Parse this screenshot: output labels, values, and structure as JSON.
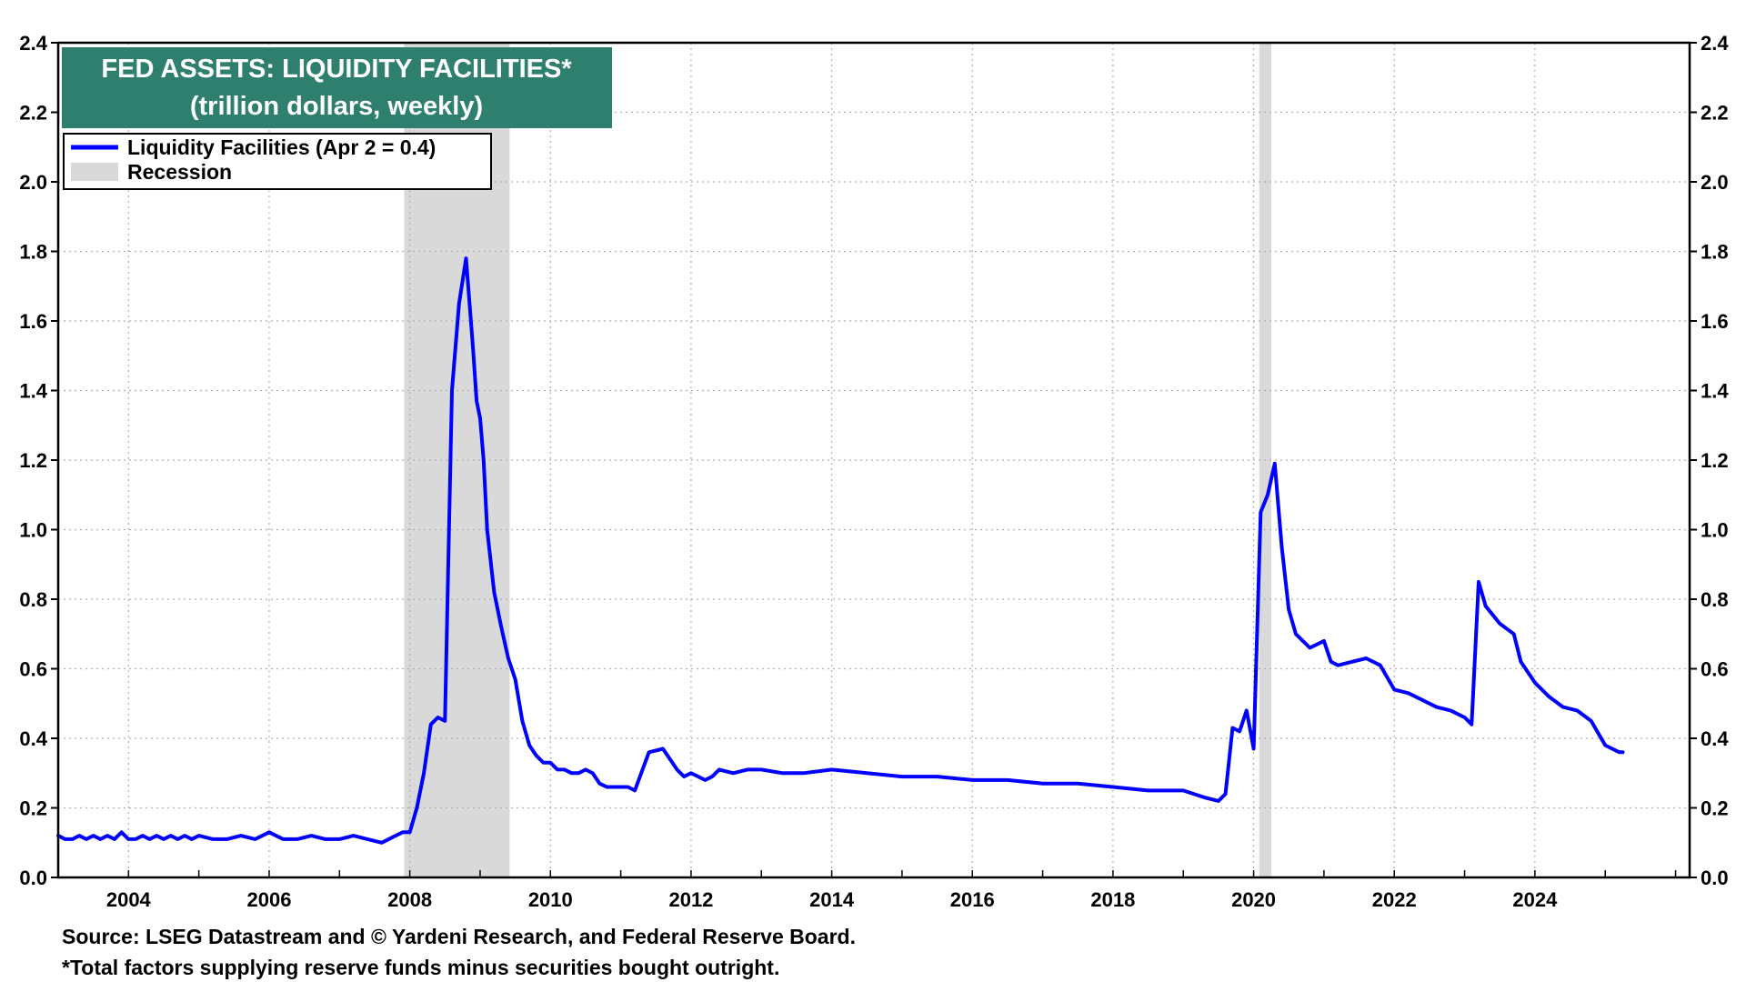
{
  "chart_data": {
    "type": "line",
    "title": "FED ASSETS: LIQUIDITY FACILITIES*",
    "subtitle": "(trillion dollars, weekly)",
    "xlabel": "",
    "ylabel": "",
    "xlim": [
      2003.0,
      2026.2
    ],
    "ylim": [
      0.0,
      2.4
    ],
    "x_ticks": [
      "2004",
      "2006",
      "2008",
      "2010",
      "2012",
      "2014",
      "2016",
      "2018",
      "2020",
      "2022",
      "2024"
    ],
    "y_ticks": [
      "0.0",
      "0.2",
      "0.4",
      "0.6",
      "0.8",
      "1.0",
      "1.2",
      "1.4",
      "1.6",
      "1.8",
      "2.0",
      "2.2",
      "2.4"
    ],
    "grid": true,
    "legend_position": "top-left",
    "series": [
      {
        "name": "Liquidity Facilities  (Apr 2 = 0.4)",
        "color": "#0000ff",
        "x": [
          2003.0,
          2003.1,
          2003.2,
          2003.3,
          2003.4,
          2003.5,
          2003.6,
          2003.7,
          2003.8,
          2003.9,
          2004.0,
          2004.1,
          2004.2,
          2004.3,
          2004.4,
          2004.5,
          2004.6,
          2004.7,
          2004.8,
          2004.9,
          2005.0,
          2005.2,
          2005.4,
          2005.6,
          2005.8,
          2006.0,
          2006.2,
          2006.4,
          2006.6,
          2006.8,
          2007.0,
          2007.2,
          2007.4,
          2007.6,
          2007.8,
          2007.9,
          2008.0,
          2008.1,
          2008.2,
          2008.3,
          2008.4,
          2008.5,
          2008.6,
          2008.7,
          2008.8,
          2008.9,
          2008.95,
          2009.0,
          2009.05,
          2009.1,
          2009.2,
          2009.3,
          2009.4,
          2009.5,
          2009.6,
          2009.7,
          2009.8,
          2009.9,
          2010.0,
          2010.1,
          2010.2,
          2010.3,
          2010.4,
          2010.5,
          2010.6,
          2010.7,
          2010.8,
          2010.9,
          2011.0,
          2011.1,
          2011.2,
          2011.4,
          2011.6,
          2011.8,
          2011.9,
          2012.0,
          2012.1,
          2012.2,
          2012.3,
          2012.4,
          2012.6,
          2012.8,
          2013.0,
          2013.3,
          2013.6,
          2014.0,
          2014.5,
          2015.0,
          2015.5,
          2016.0,
          2016.5,
          2017.0,
          2017.5,
          2018.0,
          2018.5,
          2019.0,
          2019.3,
          2019.5,
          2019.6,
          2019.7,
          2019.8,
          2019.9,
          2020.0,
          2020.1,
          2020.2,
          2020.3,
          2020.4,
          2020.5,
          2020.6,
          2020.8,
          2021.0,
          2021.1,
          2021.2,
          2021.4,
          2021.6,
          2021.8,
          2022.0,
          2022.2,
          2022.4,
          2022.6,
          2022.8,
          2023.0,
          2023.1,
          2023.2,
          2023.3,
          2023.5,
          2023.7,
          2023.8,
          2024.0,
          2024.2,
          2024.4,
          2024.6,
          2024.8,
          2025.0,
          2025.1,
          2025.2,
          2025.25
        ],
        "values": [
          0.12,
          0.11,
          0.11,
          0.12,
          0.11,
          0.12,
          0.11,
          0.12,
          0.11,
          0.13,
          0.11,
          0.11,
          0.12,
          0.11,
          0.12,
          0.11,
          0.12,
          0.11,
          0.12,
          0.11,
          0.12,
          0.11,
          0.11,
          0.12,
          0.11,
          0.13,
          0.11,
          0.11,
          0.12,
          0.11,
          0.11,
          0.12,
          0.11,
          0.1,
          0.12,
          0.13,
          0.13,
          0.2,
          0.3,
          0.44,
          0.46,
          0.45,
          1.4,
          1.65,
          1.78,
          1.52,
          1.37,
          1.32,
          1.2,
          1.0,
          0.82,
          0.72,
          0.63,
          0.57,
          0.45,
          0.38,
          0.35,
          0.33,
          0.33,
          0.31,
          0.31,
          0.3,
          0.3,
          0.31,
          0.3,
          0.27,
          0.26,
          0.26,
          0.26,
          0.26,
          0.25,
          0.36,
          0.37,
          0.31,
          0.29,
          0.3,
          0.29,
          0.28,
          0.29,
          0.31,
          0.3,
          0.31,
          0.31,
          0.3,
          0.3,
          0.31,
          0.3,
          0.29,
          0.29,
          0.28,
          0.28,
          0.27,
          0.27,
          0.26,
          0.25,
          0.25,
          0.23,
          0.22,
          0.24,
          0.43,
          0.42,
          0.48,
          0.37,
          1.05,
          1.1,
          1.19,
          0.95,
          0.77,
          0.7,
          0.66,
          0.68,
          0.62,
          0.61,
          0.62,
          0.63,
          0.61,
          0.54,
          0.53,
          0.51,
          0.49,
          0.48,
          0.46,
          0.44,
          0.85,
          0.78,
          0.73,
          0.7,
          0.62,
          0.56,
          0.52,
          0.49,
          0.48,
          0.45,
          0.38,
          0.37,
          0.36,
          0.36
        ]
      }
    ],
    "recession_shading": [
      {
        "start": 2007.92,
        "end": 2009.42
      },
      {
        "start": 2020.08,
        "end": 2020.25
      }
    ],
    "legend": {
      "series_label": "Liquidity Facilities  (Apr 2 = 0.4)",
      "recession_label": "Recession"
    },
    "colors": {
      "line": "#0000ff",
      "recession": "#d9d9d9",
      "title_bg": "#2f7f6e",
      "grid": "#b0b0b0"
    },
    "footnotes": {
      "source": "Source: LSEG Datastream and © Yardeni Research, and Federal Reserve Board.",
      "note": "*Total factors supplying reserve funds minus securities bought outright."
    }
  }
}
